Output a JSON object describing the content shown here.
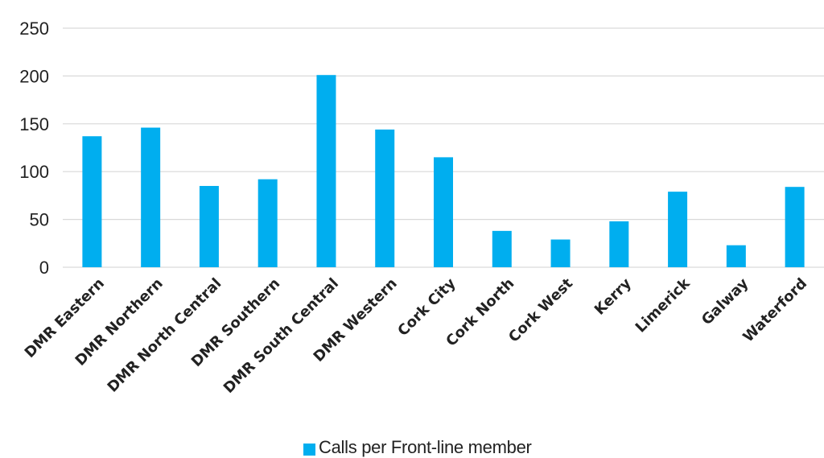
{
  "chart_data": {
    "type": "bar",
    "categories": [
      "DMR Eastern",
      "DMR Northern",
      "DMR North Central",
      "DMR Southern",
      "DMR South Central",
      "DMR Western",
      "Cork City",
      "Cork North",
      "Cork West",
      "Kerry",
      "Limerick",
      "Galway",
      "Waterford"
    ],
    "series": [
      {
        "name": "Calls per Front-line member",
        "values": [
          137,
          146,
          85,
          92,
          201,
          144,
          115,
          38,
          29,
          48,
          79,
          23,
          84
        ]
      }
    ],
    "yticks": [
      "0",
      "50",
      "100",
      "150",
      "200",
      "250"
    ],
    "ylim": [
      0,
      250
    ],
    "grid": true,
    "legend_position": "bottom",
    "colors": {
      "bar": "#00aeef",
      "grid": "#d9d9d9",
      "text": "#222222"
    }
  }
}
